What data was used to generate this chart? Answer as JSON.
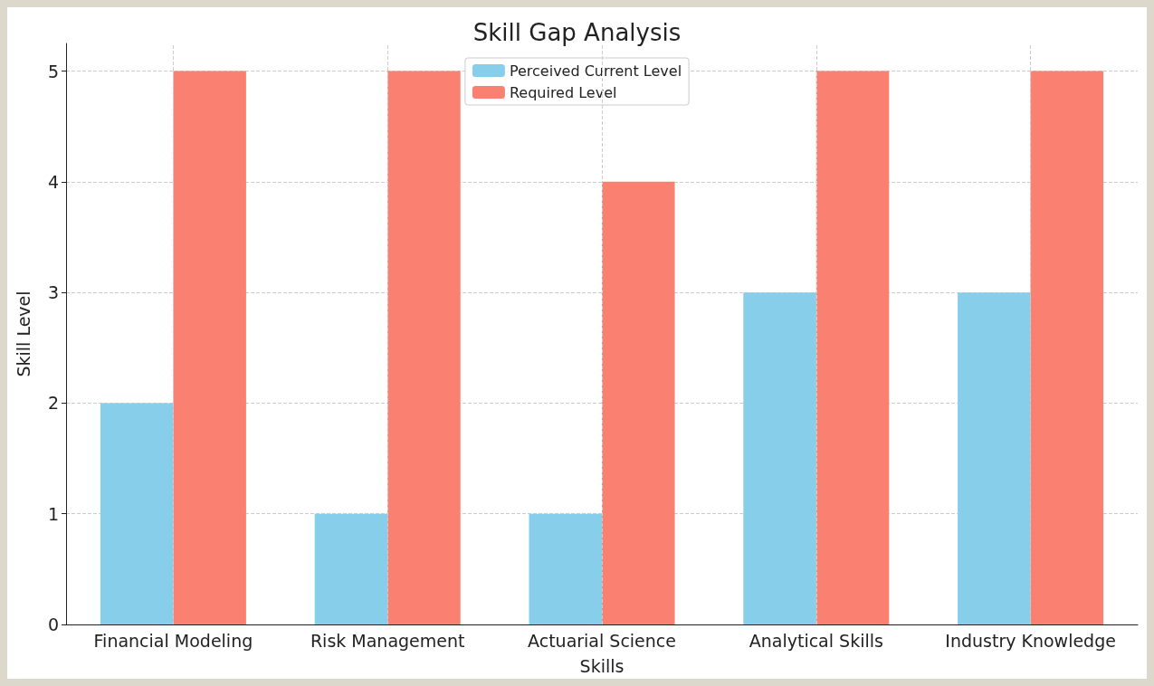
{
  "chart_data": {
    "type": "bar",
    "title": "Skill Gap Analysis",
    "xlabel": "Skills",
    "ylabel": "Skill Level",
    "categories": [
      "Financial Modeling",
      "Risk Management",
      "Actuarial Science",
      "Analytical Skills",
      "Industry Knowledge"
    ],
    "series": [
      {
        "name": "Perceived Current Level",
        "color": "#87ceeb",
        "values": [
          2,
          1,
          1,
          3,
          3
        ]
      },
      {
        "name": "Required Level",
        "color": "#fa8072",
        "values": [
          5,
          5,
          4,
          5,
          5
        ]
      }
    ],
    "ylim": [
      0,
      5.25
    ],
    "yticks": [
      0,
      1,
      2,
      3,
      4,
      5
    ],
    "grid": true,
    "legend": "top"
  }
}
